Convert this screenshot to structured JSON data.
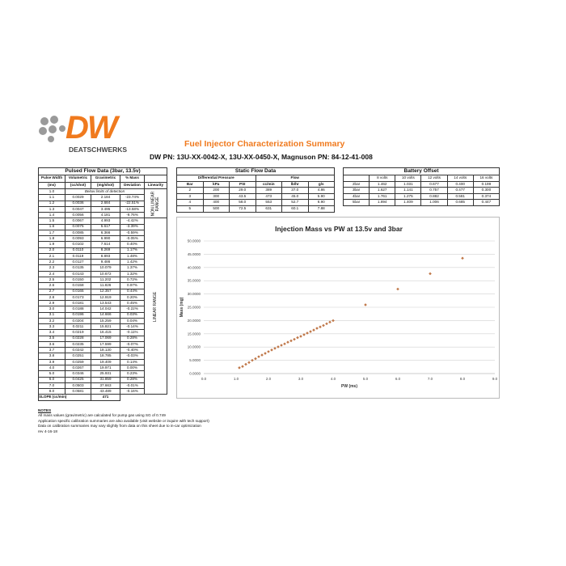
{
  "header": {
    "logo_text": "DW",
    "logo_subtext": "DEATSCHWERKS",
    "title": "Fuel Injector Characterization Summary",
    "part_numbers": "DW PN: 13U-XX-0042-X, 13U-XX-0450-X, Magnuson PN: 84-12-41-008",
    "accent": "#f07a1e"
  },
  "pulsed": {
    "title": "Pulsed Flow Data (3bar, 13.5v)",
    "headers": [
      [
        "Pulse Width",
        "(ms)"
      ],
      [
        "Volumetric",
        "(cc/shot)"
      ],
      [
        "Gravimetric",
        "(mg/shot)"
      ],
      [
        "% Mass",
        "Deviation"
      ],
      [
        "",
        "Linearity"
      ]
    ],
    "below_limits": "Below limits of detection",
    "non_linear_label": "NON LINEAR RANGE",
    "linear_label": "LINEAR RANGE",
    "rows": [
      [
        "1.0",
        "",
        "",
        ""
      ],
      [
        "1.1",
        "0.0029",
        "2.184",
        "-23.74%"
      ],
      [
        "1.2",
        "0.0036",
        "2.684",
        "-22.51%"
      ],
      [
        "1.3",
        "0.0047",
        "3.495",
        "-13.58%"
      ],
      [
        "1.4",
        "0.0056",
        "4.181",
        "-9.76%"
      ],
      [
        "1.5",
        "0.0067",
        "4.993",
        "-4.42%"
      ],
      [
        "1.6",
        "0.0075",
        "5.617",
        "-3.39%"
      ],
      [
        "1.7",
        "0.0085",
        "6.366",
        "-0.59%"
      ],
      [
        "1.8",
        "0.0093",
        "6.990",
        "-0.05%"
      ],
      [
        "1.9",
        "0.0102",
        "7.614",
        "0.40%"
      ],
      [
        "2.0",
        "0.0110",
        "8.269",
        "1.17%"
      ],
      [
        "2.1",
        "0.0119",
        "8.893",
        "1.48%"
      ],
      [
        "2.2",
        "0.0127",
        "9.486",
        "1.42%"
      ],
      [
        "2.3",
        "0.0135",
        "10.079",
        "1.37%"
      ],
      [
        "2.4",
        "0.0143",
        "10.672",
        "1.32%"
      ],
      [
        "2.5",
        "0.0150",
        "11.202",
        "0.72%"
      ],
      [
        "2.6",
        "0.0158",
        "11.826",
        "0.97%"
      ],
      [
        "2.7",
        "0.0165",
        "12.357",
        "0.44%"
      ],
      [
        "2.8",
        "0.0173",
        "12.919",
        "0.20%"
      ],
      [
        "2.9",
        "0.0181",
        "13.543",
        "0.45%"
      ],
      [
        "3.0",
        "0.0188",
        "14.042",
        "-0.22%"
      ],
      [
        "3.1",
        "0.0196",
        "14.666",
        "0.03%"
      ],
      [
        "3.2",
        "0.0204",
        "15.259",
        "0.04%"
      ],
      [
        "3.3",
        "0.0211",
        "15.821",
        "-0.14%"
      ],
      [
        "3.4",
        "0.0219",
        "16.415",
        "-0.11%"
      ],
      [
        "3.5",
        "0.0228",
        "17.069",
        "0.28%"
      ],
      [
        "3.6",
        "0.0235",
        "17.599",
        "-0.07%"
      ],
      [
        "3.7",
        "0.0242",
        "18.130",
        "-0.40%"
      ],
      [
        "3.8",
        "0.0251",
        "18.785",
        "-0.03%"
      ],
      [
        "3.9",
        "0.0259",
        "19.409",
        "0.14%"
      ],
      [
        "4.0",
        "0.0267",
        "19.971",
        "0.00%"
      ],
      [
        "5.0",
        "0.0346",
        "25.931",
        "0.23%"
      ],
      [
        "6.0",
        "0.0425",
        "31.859",
        "0.28%"
      ],
      [
        "7.0",
        "0.0503",
        "37.663",
        "-0.01%"
      ],
      [
        "8.0",
        "0.0581",
        "43.489",
        "-0.16%"
      ]
    ],
    "slope_label": "SLOPE (cc/min)",
    "slope_value": "471"
  },
  "notes": {
    "title": "NOTES",
    "lines": [
      "All mass values (gravimetric) are calculated for pump gas using SG of 0.749",
      "Application specific calibration summaries are also available (visit website or inquire with tech support)",
      "Data on calibration summaries may vary slightly from data on this sheet due to in-car optimization",
      "rev 4-16-18"
    ]
  },
  "static": {
    "title": "Static Flow Data",
    "group1": "Differential Pressure",
    "group2": "Flow",
    "headers": [
      "Bar",
      "kPa",
      "PSI",
      "cc/min",
      "lb/hr",
      "g/s"
    ],
    "rows": [
      [
        "2",
        "200",
        "29.0",
        "389",
        "37.0",
        "4.86"
      ],
      [
        "3",
        "300",
        "43.5",
        "473",
        "45.0",
        "5.90"
      ],
      [
        "4",
        "400",
        "58.0",
        "553",
        "52.7",
        "6.90"
      ],
      [
        "5",
        "500",
        "72.5",
        "631",
        "60.1",
        "7.88"
      ]
    ]
  },
  "battery": {
    "title": "Battery Offset",
    "headers": [
      "",
      "8 volts",
      "10 volts",
      "12 volts",
      "14 volts",
      "16 volts"
    ],
    "rows": [
      [
        "2bar",
        "1.462",
        "1.031",
        "0.677",
        "0.400",
        "0.199"
      ],
      [
        "3bar",
        "1.627",
        "1.141",
        "0.757",
        "0.477",
        "0.300"
      ],
      [
        "4bar",
        "1.761",
        "1.275",
        "0.882",
        "0.581",
        "0.374"
      ],
      [
        "5bar",
        "1.894",
        "1.409",
        "1.006",
        "0.685",
        "0.447"
      ]
    ]
  },
  "chart_data": {
    "type": "scatter",
    "title": "Injection Mass vs PW at 13.5v and 3bar",
    "xlabel": "PW (ms)",
    "ylabel": "Mass (mg)",
    "xlim": [
      0,
      9
    ],
    "ylim": [
      0,
      50
    ],
    "grid": "horizontal",
    "marker_color": "#c0784a",
    "xticks": [
      "0.0",
      "1.0",
      "2.0",
      "3.0",
      "4.0",
      "5.0",
      "6.0",
      "7.0",
      "8.0",
      "9.0"
    ],
    "yticks": [
      "0.0000",
      "5.0000",
      "10.0000",
      "15.0000",
      "20.0000",
      "25.0000",
      "30.0000",
      "35.0000",
      "40.0000",
      "45.0000",
      "50.0000"
    ],
    "x": [
      1.1,
      1.2,
      1.3,
      1.4,
      1.5,
      1.6,
      1.7,
      1.8,
      1.9,
      2.0,
      2.1,
      2.2,
      2.3,
      2.4,
      2.5,
      2.6,
      2.7,
      2.8,
      2.9,
      3.0,
      3.1,
      3.2,
      3.3,
      3.4,
      3.5,
      3.6,
      3.7,
      3.8,
      3.9,
      4.0,
      5.0,
      6.0,
      7.0,
      8.0
    ],
    "y": [
      2.184,
      2.684,
      3.495,
      4.181,
      4.993,
      5.617,
      6.366,
      6.99,
      7.614,
      8.269,
      8.893,
      9.486,
      10.079,
      10.672,
      11.202,
      11.826,
      12.357,
      12.919,
      13.543,
      14.042,
      14.666,
      15.259,
      15.821,
      16.415,
      17.069,
      17.599,
      18.13,
      18.785,
      19.409,
      19.971,
      25.931,
      31.859,
      37.663,
      43.489
    ]
  }
}
